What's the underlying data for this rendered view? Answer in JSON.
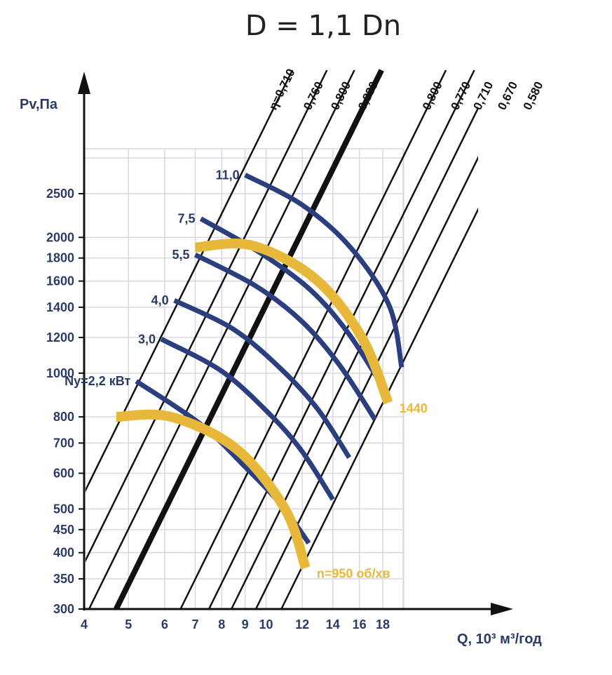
{
  "colors": {
    "navy": "#2b3f7f",
    "gold": "#e8b83a",
    "axis": "#111111",
    "label": "#2b3a66"
  },
  "chart_data": {
    "type": "line",
    "title": "D = 1,1 Dn",
    "xlabel": "Q, 10³ м³/год",
    "ylabel": "Pv,Па",
    "x_scale": "log",
    "y_scale": "log",
    "xlim": [
      4,
      20
    ],
    "ylim": [
      300,
      3500
    ],
    "x_ticks": [
      4,
      5,
      6,
      7,
      8,
      9,
      10,
      12,
      14,
      16,
      18
    ],
    "y_ticks": [
      300,
      350,
      400,
      450,
      500,
      600,
      700,
      800,
      1000,
      1200,
      1400,
      1600,
      1800,
      2000,
      2500
    ],
    "efficiency_lines": [
      {
        "label": "η=0,710",
        "q_at_300": 3.0
      },
      {
        "label": "0,760",
        "q_at_300": 3.57
      },
      {
        "label": "0,800",
        "q_at_300": 4.1
      },
      {
        "label": "0,830",
        "q_at_300": 4.7,
        "bold": true
      },
      {
        "label": "0,800",
        "q_at_300": 6.5
      },
      {
        "label": "0,770",
        "q_at_300": 7.5
      },
      {
        "label": "0,710",
        "q_at_300": 8.4
      },
      {
        "label": "0,670",
        "q_at_300": 9.5
      },
      {
        "label": "0,580",
        "q_at_300": 10.8
      }
    ],
    "power_curves": [
      {
        "label": "Ny=2,2 кВт",
        "points": [
          [
            5.2,
            960
          ],
          [
            7.2,
            770
          ],
          [
            9.0,
            620
          ],
          [
            10.8,
            510
          ],
          [
            12.4,
            420
          ]
        ]
      },
      {
        "label": "3,0",
        "points": [
          [
            5.9,
            1190
          ],
          [
            8.0,
            1010
          ],
          [
            10.2,
            810
          ],
          [
            12.0,
            670
          ],
          [
            14.0,
            525
          ]
        ]
      },
      {
        "label": "4,0",
        "points": [
          [
            6.3,
            1450
          ],
          [
            8.5,
            1250
          ],
          [
            10.8,
            1020
          ],
          [
            13.0,
            830
          ],
          [
            15.2,
            650
          ]
        ]
      },
      {
        "label": "5,5",
        "points": [
          [
            7.0,
            1830
          ],
          [
            9.5,
            1560
          ],
          [
            12.0,
            1300
          ],
          [
            14.5,
            1040
          ],
          [
            17.3,
            790
          ]
        ]
      },
      {
        "label": "7,5",
        "points": [
          [
            7.2,
            2200
          ],
          [
            9.7,
            1850
          ],
          [
            12.5,
            1530
          ],
          [
            15.1,
            1230
          ],
          [
            17.8,
            950
          ]
        ]
      },
      {
        "label": "11,0",
        "points": [
          [
            9.0,
            2750
          ],
          [
            12.0,
            2360
          ],
          [
            15.3,
            1900
          ],
          [
            18.6,
            1410
          ],
          [
            19.8,
            1030
          ]
        ]
      }
    ],
    "speed_curves": [
      {
        "label": "n=950 об/хв",
        "points": [
          [
            4.7,
            800
          ],
          [
            6.2,
            800
          ],
          [
            8.6,
            680
          ],
          [
            11.0,
            500
          ],
          [
            12.2,
            370
          ]
        ]
      },
      {
        "label": "1440",
        "points": [
          [
            7.0,
            1900
          ],
          [
            9.3,
            1920
          ],
          [
            12.8,
            1620
          ],
          [
            16.2,
            1200
          ],
          [
            18.5,
            860
          ]
        ]
      }
    ]
  }
}
